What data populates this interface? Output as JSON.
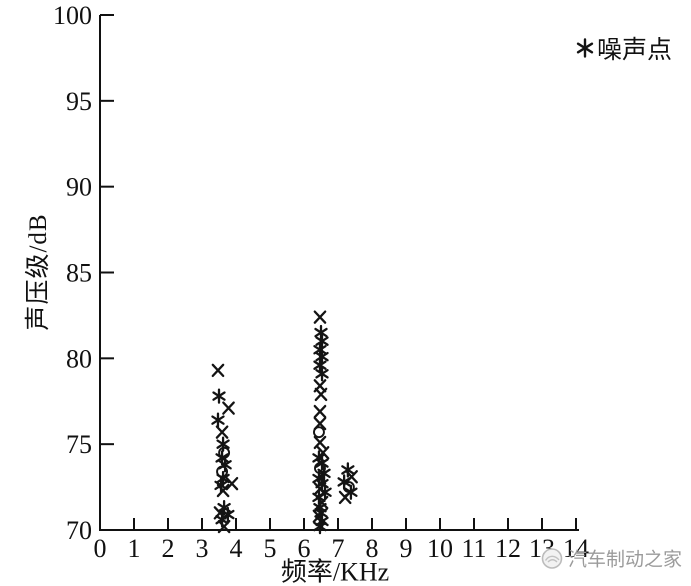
{
  "page": {
    "background": "#ffffff",
    "ink_color": "#141414"
  },
  "watermark": {
    "text": "汽车制动之家",
    "color": "#9b9b9b"
  },
  "chart_data": {
    "type": "scatter",
    "title": "",
    "xlabel": "频率/KHz",
    "ylabel": "声压级/dB",
    "xlim": [
      0,
      14
    ],
    "ylim": [
      70,
      100
    ],
    "x_ticks": [
      0,
      1,
      2,
      3,
      4,
      5,
      6,
      7,
      8,
      9,
      10,
      11,
      12,
      13,
      14
    ],
    "y_ticks": [
      70,
      75,
      80,
      85,
      90,
      95,
      100
    ],
    "grid": false,
    "marker_color": "#141414",
    "legend": {
      "position": "top-right",
      "symbol": "✳",
      "marker": "asterisk",
      "label": "噪声点"
    },
    "series": [
      {
        "name": "噪声点 (asterisk markers)",
        "marker": "asterisk",
        "points": [
          [
            3.5,
            77.8
          ],
          [
            3.47,
            76.4
          ],
          [
            3.62,
            75.0
          ],
          [
            3.59,
            74.2
          ],
          [
            3.68,
            73.8
          ],
          [
            3.62,
            73.0
          ],
          [
            3.56,
            72.6
          ],
          [
            3.65,
            71.3
          ],
          [
            3.76,
            70.9
          ],
          [
            3.59,
            70.6
          ],
          [
            6.5,
            81.5
          ],
          [
            6.53,
            81.0
          ],
          [
            6.47,
            80.5
          ],
          [
            6.53,
            80.1
          ],
          [
            6.47,
            79.6
          ],
          [
            6.53,
            79.1
          ],
          [
            6.44,
            74.2
          ],
          [
            6.53,
            73.9
          ],
          [
            6.59,
            73.3
          ],
          [
            6.44,
            73.0
          ],
          [
            6.53,
            72.7
          ],
          [
            6.62,
            72.2
          ],
          [
            6.44,
            71.9
          ],
          [
            6.47,
            71.3
          ],
          [
            6.5,
            71.0
          ],
          [
            6.53,
            70.5
          ],
          [
            6.47,
            70.2
          ],
          [
            7.29,
            73.5
          ],
          [
            7.18,
            72.8
          ],
          [
            7.38,
            72.2
          ]
        ]
      },
      {
        "name": "噪声点 (x markers)",
        "marker": "x",
        "points": [
          [
            3.47,
            79.3
          ],
          [
            3.78,
            77.1
          ],
          [
            3.59,
            75.7
          ],
          [
            3.88,
            72.7
          ],
          [
            3.62,
            72.3
          ],
          [
            3.53,
            71.0
          ],
          [
            3.65,
            70.2
          ],
          [
            6.47,
            82.4
          ],
          [
            6.47,
            78.4
          ],
          [
            6.5,
            77.9
          ],
          [
            6.47,
            76.9
          ],
          [
            6.47,
            76.2
          ],
          [
            6.47,
            75.1
          ],
          [
            6.56,
            74.5
          ],
          [
            6.47,
            72.4
          ],
          [
            6.53,
            71.6
          ],
          [
            6.44,
            70.8
          ],
          [
            7.4,
            73.1
          ],
          [
            7.21,
            71.9
          ]
        ]
      },
      {
        "name": "噪声点 (circle markers)",
        "marker": "circle",
        "points": [
          [
            3.65,
            74.5
          ],
          [
            3.59,
            73.4
          ],
          [
            6.44,
            75.7
          ],
          [
            6.47,
            73.6
          ],
          [
            7.32,
            72.5
          ]
        ]
      }
    ]
  }
}
